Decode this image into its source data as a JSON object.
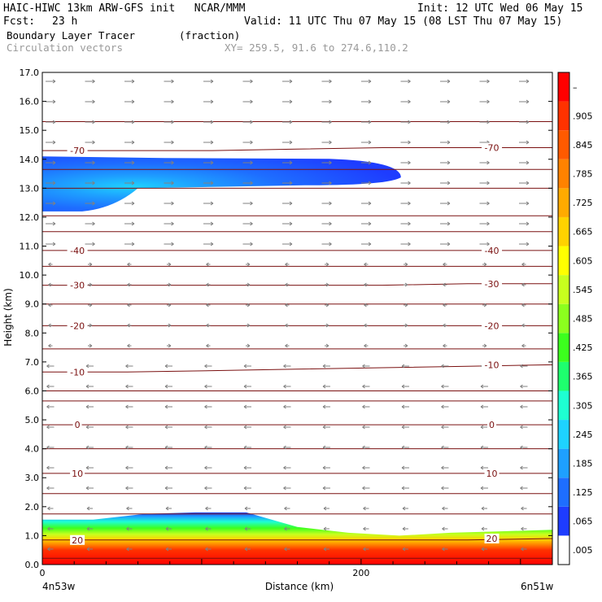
{
  "header": {
    "line1_left": "HAIC-HIWC 13km ARW-GFS init   NCAR/MMM",
    "line1_right": "Init: 12 UTC Wed 06 May 15",
    "fcst_label": "Fcst:",
    "fcst_value": "23 h",
    "valid": "Valid: 11 UTC Thu 07 May 15 (08 LST Thu 07 May 15)",
    "field_title": "Boundary Layer Tracer",
    "field_units": "(fraction)",
    "vector_title": "Circulation vectors",
    "xy_range": "XY= 259.5, 91.6 to 274.6,110.2"
  },
  "colors": {
    "contour": "#7a1010",
    "vectors": "#808080"
  },
  "chart_data": {
    "type": "heatmap",
    "ylabel": "Height (km)",
    "xlabel": "Distance (km)",
    "ylim": [
      0,
      17
    ],
    "xlim": [
      0,
      320
    ],
    "yticks": [
      "0.0",
      "1.0",
      "2.0",
      "3.0",
      "4.0",
      "5.0",
      "6.0",
      "7.0",
      "8.0",
      "9.0",
      "10.0",
      "11.0",
      "12.0",
      "13.0",
      "14.0",
      "15.0",
      "16.0",
      "17.0"
    ],
    "xtick_value": 200,
    "xtick_label": "200",
    "x_left_label": "4n53w",
    "x_right_label": "6n51w",
    "colorbar": {
      "labels": [
        ".005",
        ".065",
        ".125",
        ".185",
        ".245",
        ".305",
        ".365",
        ".425",
        ".485",
        ".545",
        ".605",
        ".665",
        ".725",
        ".785",
        ".845",
        ".905",
        "–"
      ],
      "colors": [
        "#ffffff",
        "#1e3cff",
        "#1e6eff",
        "#1ea0ff",
        "#1ed2ff",
        "#1effd2",
        "#1eff6e",
        "#3cff1e",
        "#8cff1e",
        "#c8ff1e",
        "#ffff00",
        "#ffd200",
        "#ffaa00",
        "#ff8200",
        "#ff5a00",
        "#ff3200",
        "#ff0000"
      ]
    },
    "temperature_contours": [
      {
        "label": "-70",
        "heights": [
          14.3,
          14.3,
          14.3,
          14.35,
          14.4,
          14.4,
          14.4
        ],
        "label_left": true,
        "label_right": true
      },
      {
        "label": "-40",
        "heights": [
          10.85,
          10.85,
          10.85,
          10.85,
          10.85,
          10.85,
          10.85
        ],
        "label_left": true,
        "label_right": true
      },
      {
        "label": "-30",
        "heights": [
          9.65,
          9.65,
          9.65,
          9.65,
          9.65,
          9.7,
          9.7
        ],
        "label_left": true,
        "label_right": true
      },
      {
        "label": "-20",
        "heights": [
          8.25,
          8.25,
          8.25,
          8.25,
          8.25,
          8.25,
          8.25
        ],
        "label_left": true,
        "label_right": true
      },
      {
        "label": "-10",
        "heights": [
          6.65,
          6.65,
          6.7,
          6.75,
          6.8,
          6.85,
          6.9
        ],
        "label_left": true,
        "label_right": true
      },
      {
        "label": "0",
        "heights": [
          4.83,
          4.83,
          4.83,
          4.83,
          4.83,
          4.83,
          4.83
        ],
        "label_left": true,
        "label_right": true
      },
      {
        "label": "10",
        "heights": [
          3.15,
          3.15,
          3.15,
          3.15,
          3.15,
          3.15,
          3.15
        ],
        "label_left": true,
        "label_right": true
      },
      {
        "label": "20",
        "heights": [
          0.85,
          0.85,
          0.85,
          0.85,
          0.85,
          0.85,
          0.9
        ],
        "label_left": true,
        "label_right": true
      }
    ],
    "unlabeled_contours": [
      15.3,
      13.65,
      13.0,
      12.05,
      11.5,
      10.3,
      9.0,
      7.45,
      6.0,
      5.65,
      4.0,
      2.45,
      1.75,
      0.22
    ],
    "tracer_fields": [
      {
        "name": "upper_plume",
        "x_start": 0,
        "x_end": 225,
        "top": 14.1,
        "bottom": 12.2,
        "core_max": 0.3
      },
      {
        "name": "boundary_layer",
        "top_profile": [
          1.55,
          1.55,
          1.75,
          1.8,
          1.8,
          1.3,
          1.1,
          1.0,
          1.1,
          1.15,
          1.2
        ],
        "max": 1.0
      }
    ]
  }
}
